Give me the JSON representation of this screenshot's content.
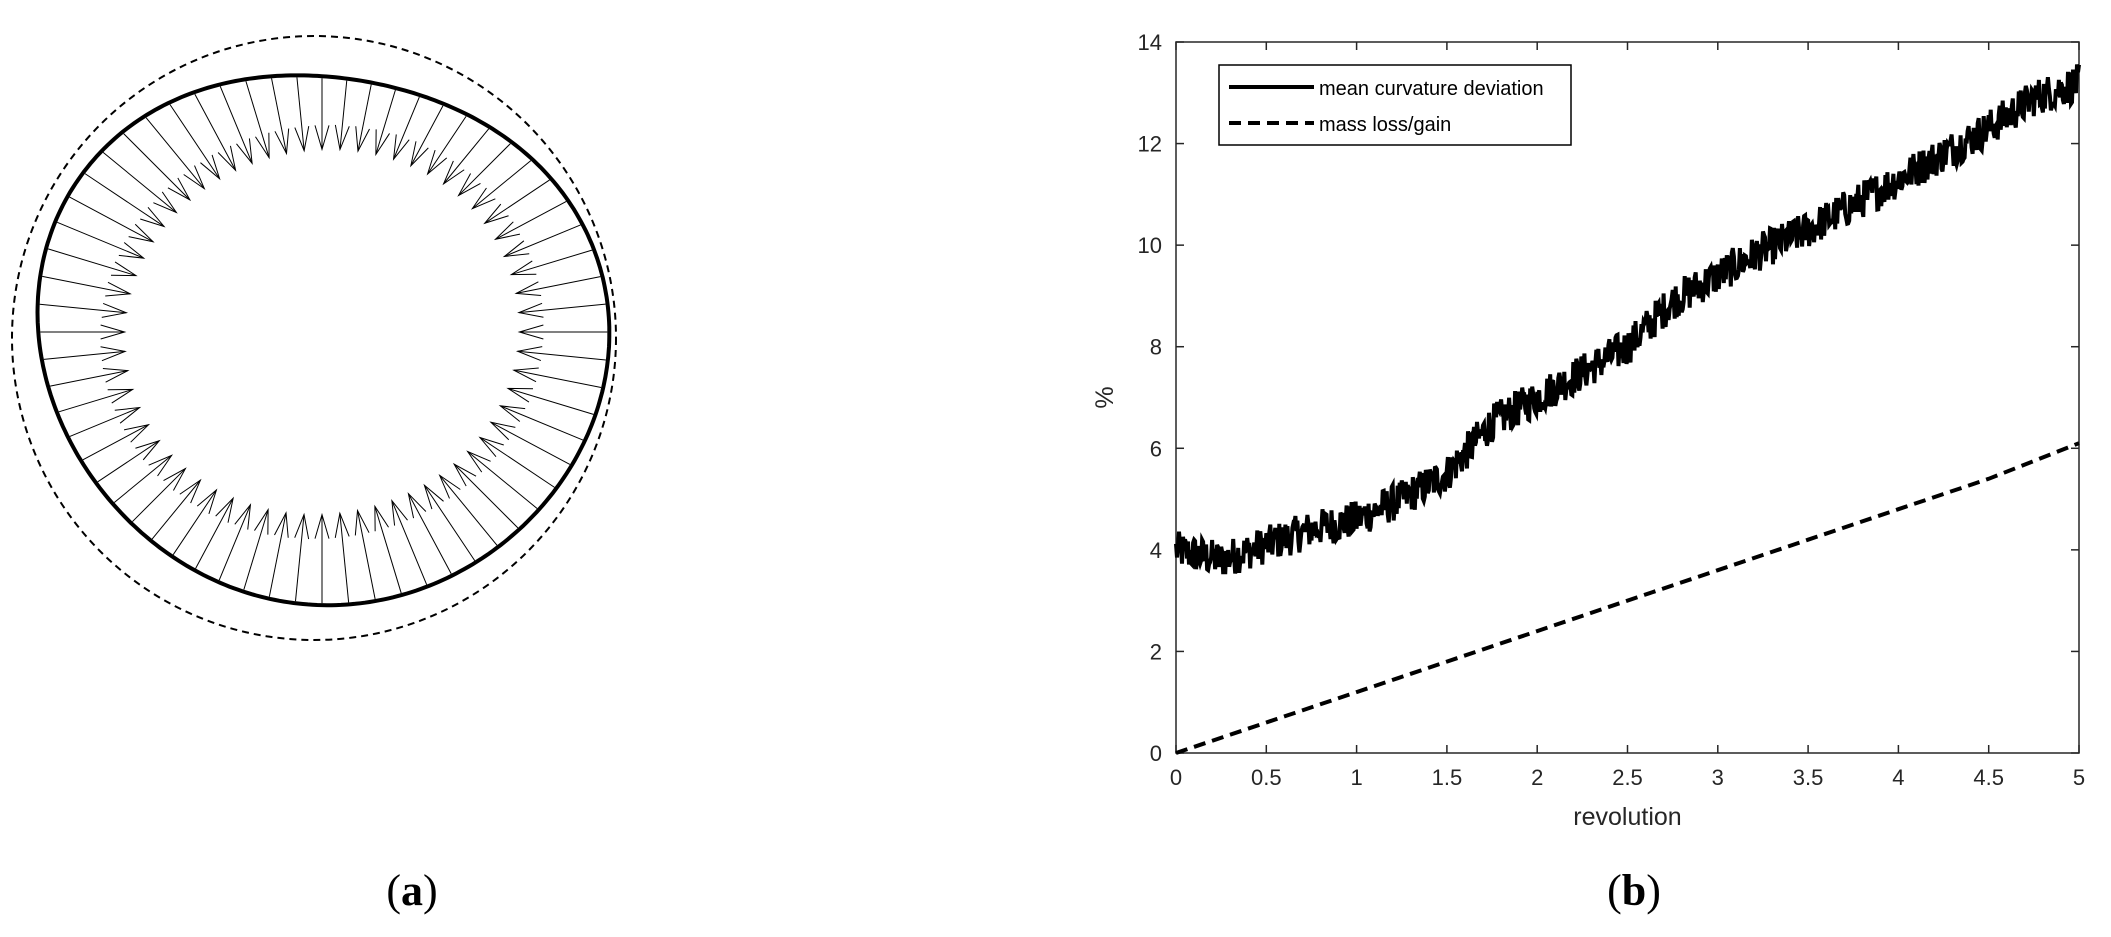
{
  "panel_a": {
    "label_open": "(",
    "label_letter": "a",
    "label_close": ")",
    "arrow_count": 64
  },
  "panel_b": {
    "label_open": "(",
    "label_letter": "b",
    "label_close": ")"
  },
  "chart_data": [
    {
      "panel": "a",
      "type": "other",
      "elements": [
        "dashed reference circle",
        "solid deformed closed contour",
        "inward-pointing arrows"
      ]
    },
    {
      "panel": "b",
      "type": "line",
      "title": "",
      "xlabel": "revolution",
      "ylabel": "%",
      "xlim": [
        0,
        5
      ],
      "ylim": [
        0,
        14
      ],
      "xticks": [
        "0",
        "0.5",
        "1",
        "1.5",
        "2",
        "2.5",
        "3",
        "3.5",
        "4",
        "4.5",
        "5"
      ],
      "yticks": [
        "0",
        "2",
        "4",
        "6",
        "8",
        "10",
        "12",
        "14"
      ],
      "grid": false,
      "legend_position": "top-left",
      "series": [
        {
          "name": "mean curvature deviation",
          "style": "solid",
          "x": [
            0,
            0.25,
            0.5,
            0.75,
            1.0,
            1.25,
            1.5,
            1.75,
            2.0,
            2.25,
            2.5,
            2.75,
            3.0,
            3.25,
            3.5,
            3.75,
            4.0,
            4.25,
            4.5,
            4.75,
            5.0
          ],
          "y": [
            4.0,
            3.8,
            4.1,
            4.4,
            4.6,
            5.0,
            5.5,
            6.5,
            7.0,
            7.5,
            8.0,
            8.9,
            9.4,
            9.9,
            10.3,
            10.8,
            11.3,
            11.8,
            12.3,
            12.9,
            13.2
          ]
        },
        {
          "name": "mass loss/gain",
          "style": "dashed",
          "x": [
            0,
            0.5,
            1.0,
            1.5,
            2.0,
            2.5,
            3.0,
            3.5,
            4.0,
            4.5,
            5.0
          ],
          "y": [
            0.0,
            0.6,
            1.2,
            1.8,
            2.4,
            3.0,
            3.6,
            4.2,
            4.8,
            5.4,
            6.1
          ]
        }
      ]
    }
  ]
}
